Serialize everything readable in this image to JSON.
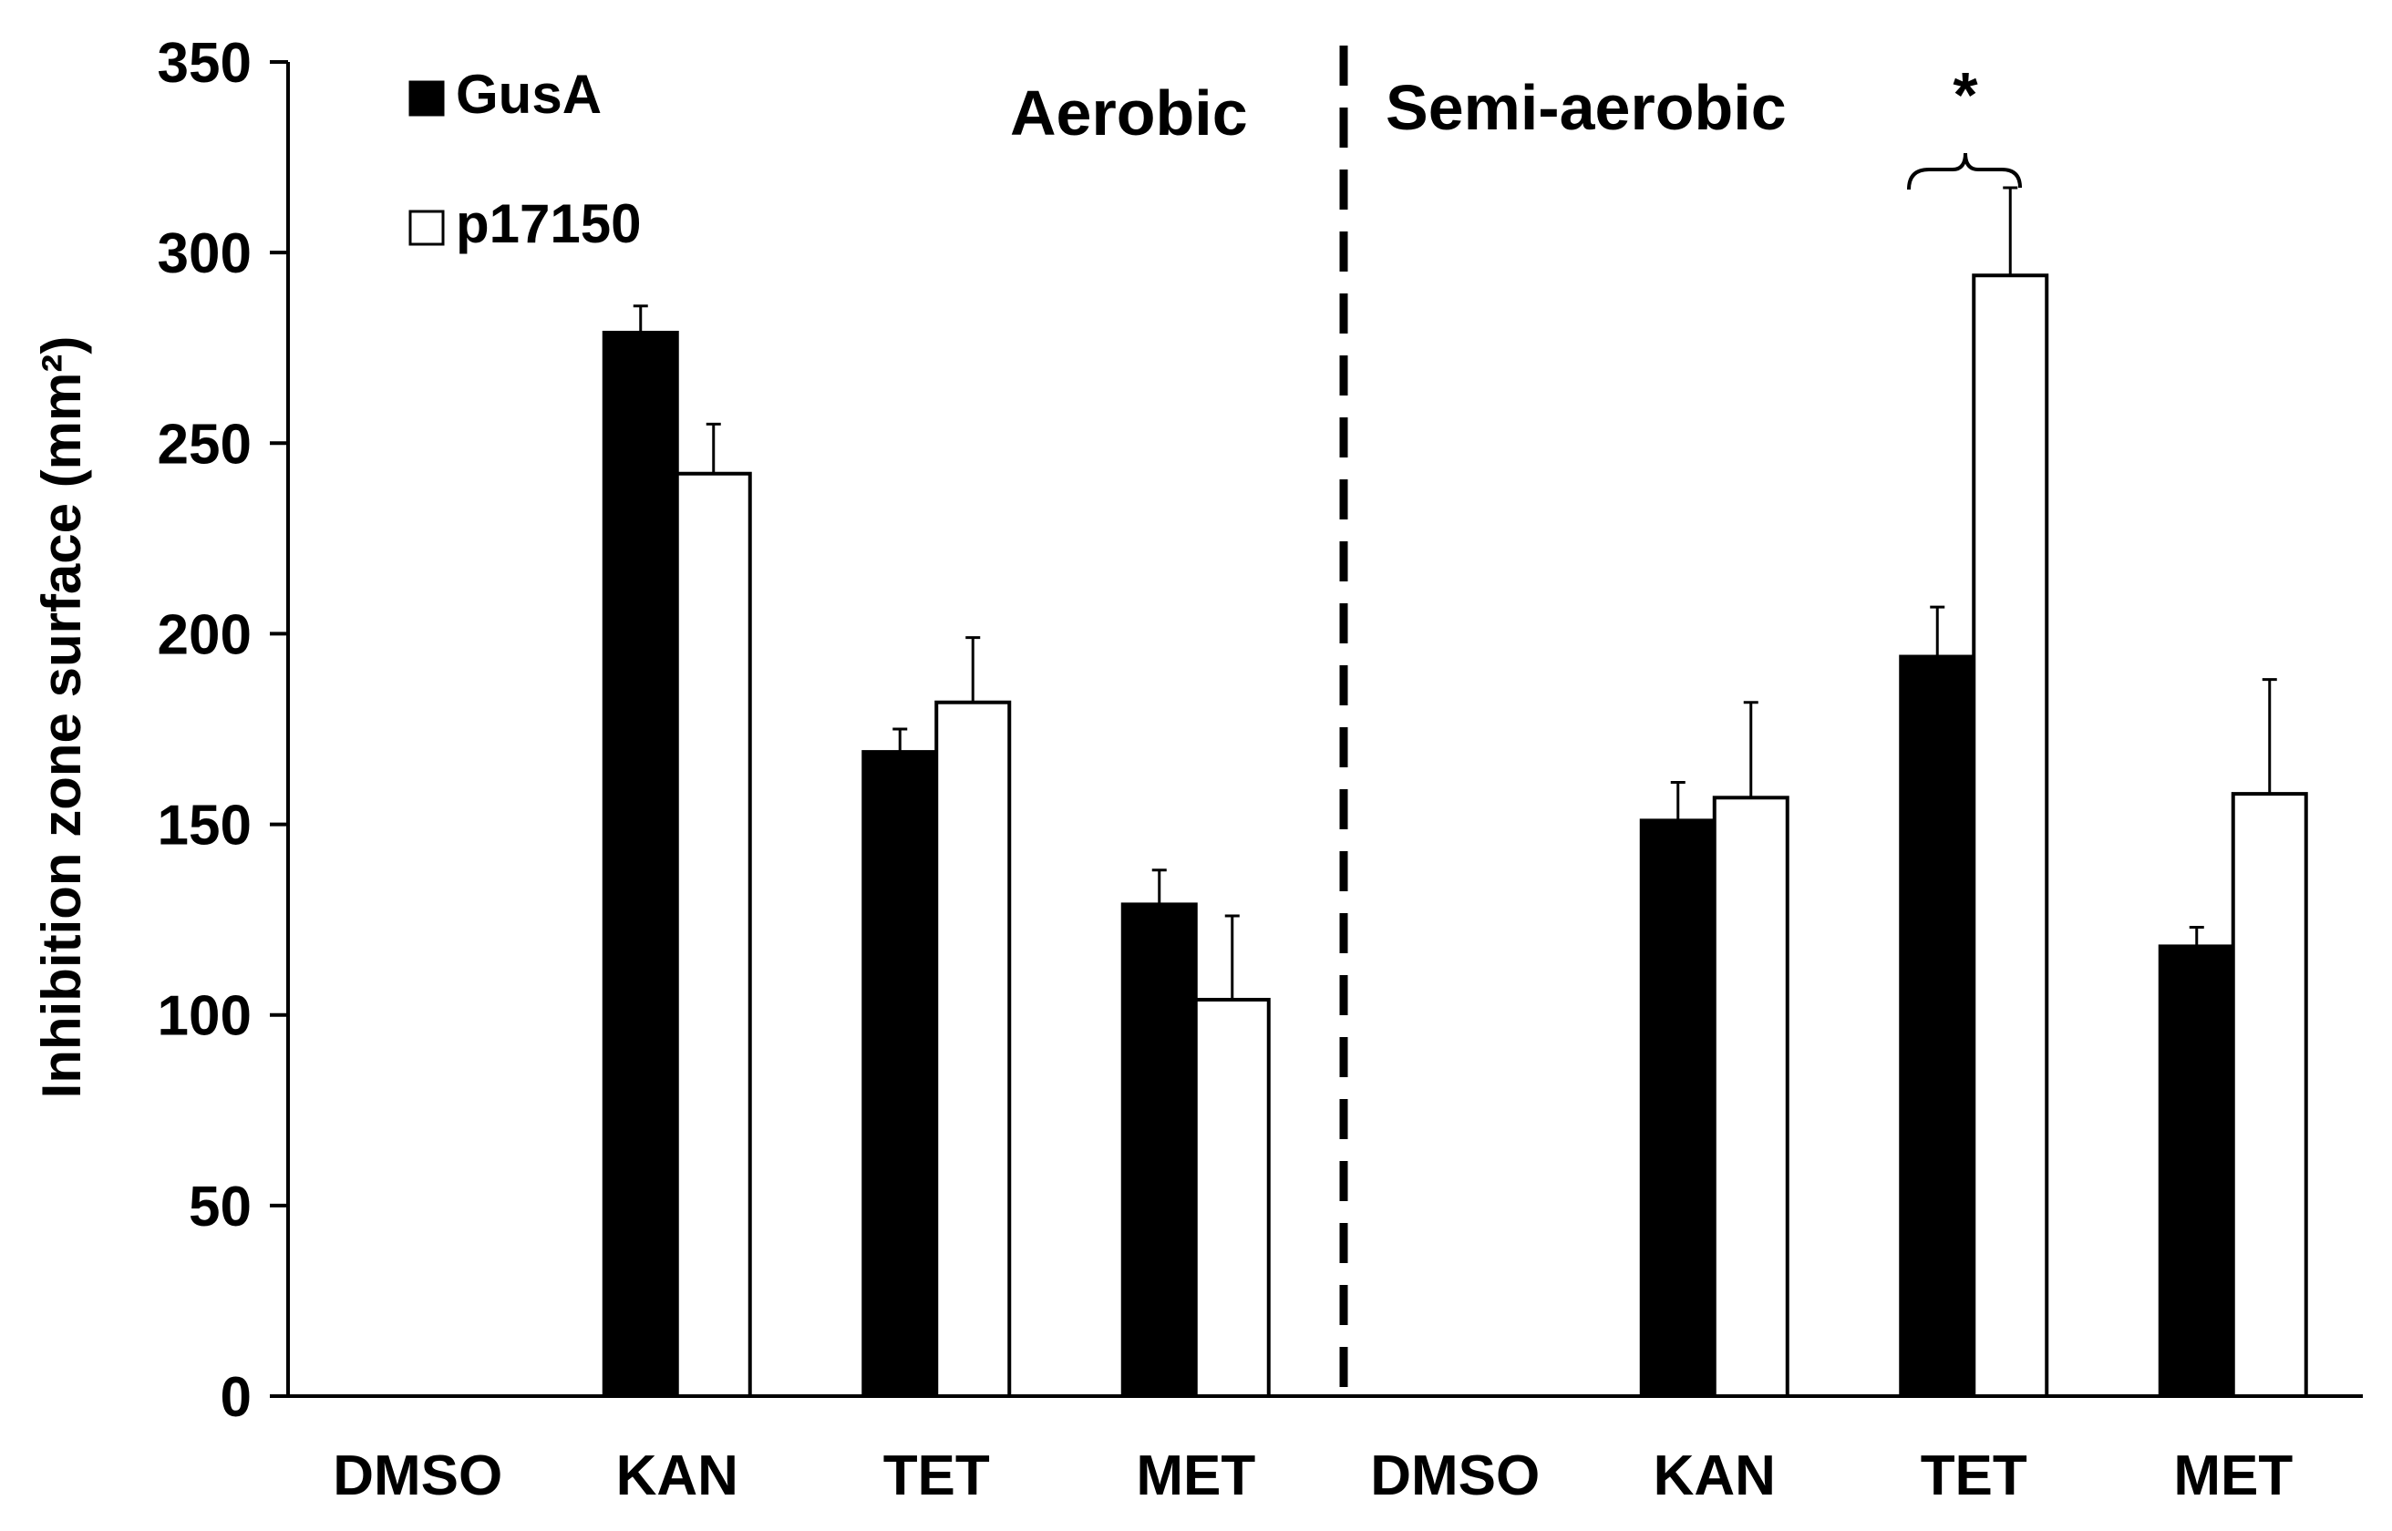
{
  "chart_data": {
    "type": "bar",
    "title": "",
    "xlabel": "",
    "ylabel": "Inhibition  zone surface (mm²)",
    "ylim": [
      0,
      350
    ],
    "yticks": [
      0,
      50,
      100,
      150,
      200,
      250,
      300,
      350
    ],
    "categories": [
      "DMSO",
      "KAN",
      "TET",
      "MET",
      "DMSO",
      "KAN",
      "TET",
      "MET"
    ],
    "conditions": [
      "Aerobic",
      "Semi-aerobic"
    ],
    "series": [
      {
        "name": "GusA",
        "color": "#000000",
        "values": [
          0,
          279,
          169,
          129,
          0,
          151,
          194,
          118
        ],
        "errors": [
          0,
          7,
          6,
          9,
          0,
          10,
          13,
          5
        ]
      },
      {
        "name": "p17150",
        "color": "#ffffff",
        "values": [
          0,
          242,
          182,
          104,
          0,
          157,
          294,
          158
        ],
        "errors": [
          0,
          13,
          17,
          22,
          0,
          25,
          23,
          30
        ]
      }
    ],
    "annotations": [
      {
        "type": "significance",
        "text": "*",
        "category_index": 6
      }
    ]
  }
}
